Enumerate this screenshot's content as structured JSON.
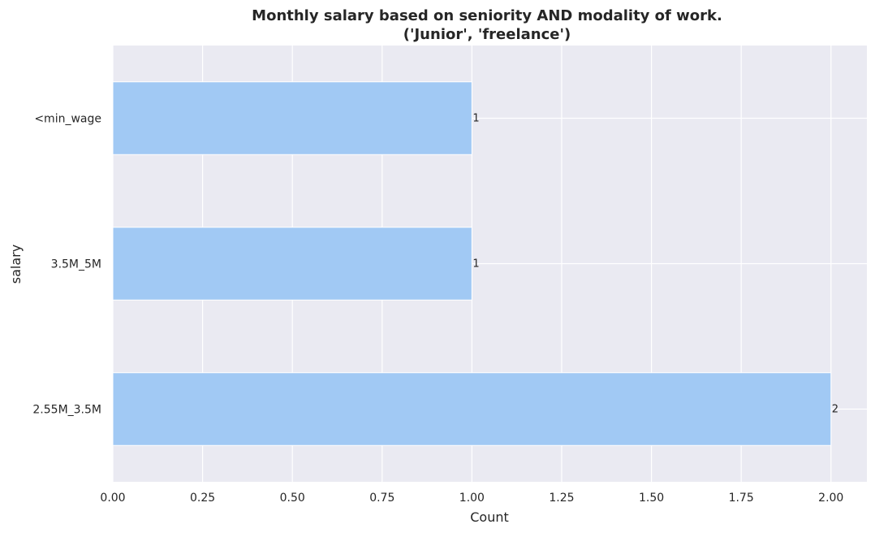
{
  "chart_data": {
    "type": "bar",
    "orientation": "horizontal",
    "title_lines": [
      "Monthly salary based on seniority AND modality of work.",
      "('Junior', 'freelance')"
    ],
    "xlabel": "Count",
    "ylabel": "salary",
    "categories": [
      "<min_wage",
      "3.5M_5M",
      "2.55M_3.5M"
    ],
    "values": [
      1,
      1,
      2
    ],
    "data_labels": [
      "1",
      "1",
      "2"
    ],
    "xlim": [
      0,
      2.1
    ],
    "xticks": [
      "0.00",
      "0.25",
      "0.50",
      "0.75",
      "1.00",
      "1.25",
      "1.50",
      "1.75",
      "2.00"
    ],
    "grid": true,
    "bar_color": "#a1c9f4",
    "background_color": "#eaeaf2",
    "grid_color": "#ffffff"
  }
}
